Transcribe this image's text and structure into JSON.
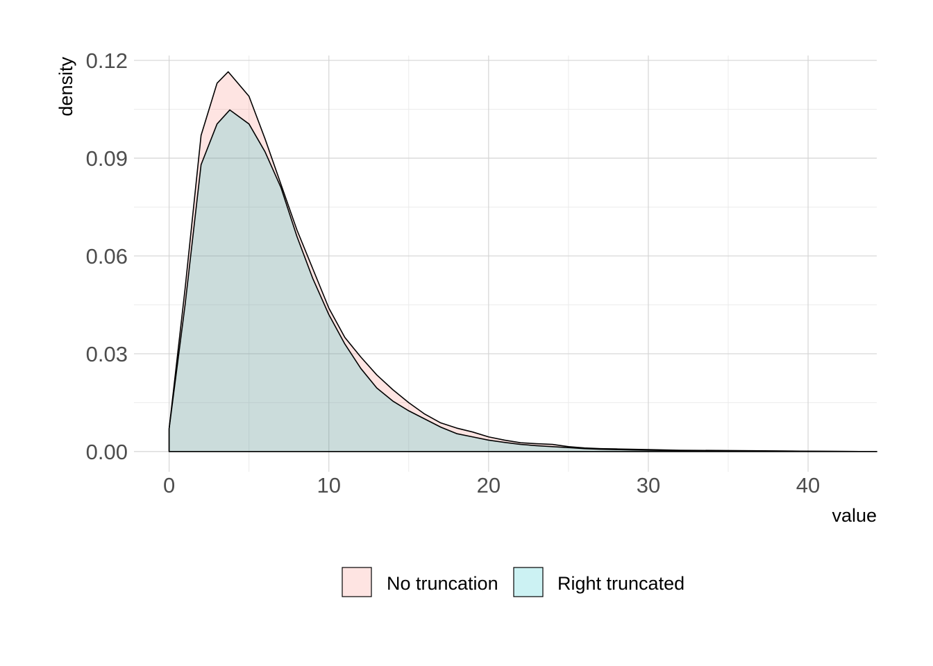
{
  "chart_data": {
    "type": "area",
    "xlabel": "value",
    "ylabel": "density",
    "xlim": [
      -2.2,
      44.3
    ],
    "ylim": [
      -0.0062,
      0.1215
    ],
    "x_ticks": [
      0,
      10,
      20,
      30,
      40
    ],
    "x_tick_labels": [
      "0",
      "10",
      "20",
      "30",
      "40"
    ],
    "y_ticks": [
      0,
      0.03,
      0.06,
      0.09,
      0.12
    ],
    "y_tick_labels": [
      "0.00",
      "0.03",
      "0.06",
      "0.09",
      "0.12"
    ],
    "grid": true,
    "legend_position": "bottom",
    "series": [
      {
        "name": "No truncation",
        "fill": "#F8766D",
        "fill_opacity": 0.2,
        "x": [
          0,
          1,
          2,
          3,
          3.7,
          5,
          6,
          7,
          8,
          9,
          10,
          11,
          12,
          13,
          14,
          15,
          16,
          17,
          18,
          19,
          20,
          21,
          22,
          23,
          24,
          25,
          26,
          27,
          28,
          30,
          32,
          35,
          38,
          40,
          44.3
        ],
        "y": [
          0.007,
          0.05,
          0.097,
          0.113,
          0.1165,
          0.109,
          0.096,
          0.082,
          0.068,
          0.056,
          0.044,
          0.035,
          0.029,
          0.0235,
          0.019,
          0.015,
          0.0115,
          0.0088,
          0.0072,
          0.006,
          0.0045,
          0.0035,
          0.0027,
          0.0024,
          0.0022,
          0.0015,
          0.0011,
          0.0009,
          0.0008,
          0.0006,
          0.0004,
          0.0003,
          0.0002,
          0.0001,
          0.0
        ]
      },
      {
        "name": "Right truncated",
        "fill": "#00BFC4",
        "fill_opacity": 0.2,
        "x": [
          0,
          1,
          2,
          3,
          3.8,
          5,
          6,
          7,
          8,
          9,
          10,
          11,
          12,
          13,
          14,
          15,
          16,
          17,
          18,
          19,
          20,
          21,
          22,
          23,
          24,
          25,
          26,
          27,
          28,
          29,
          30,
          32,
          35,
          38,
          40,
          44.3
        ],
        "y": [
          0.007,
          0.045,
          0.088,
          0.1005,
          0.1048,
          0.1005,
          0.092,
          0.081,
          0.066,
          0.053,
          0.042,
          0.033,
          0.0255,
          0.0195,
          0.0155,
          0.0125,
          0.01,
          0.0075,
          0.0055,
          0.0045,
          0.0035,
          0.0028,
          0.0022,
          0.0018,
          0.0015,
          0.0012,
          0.0009,
          0.0007,
          0.0006,
          0.0005,
          0.0004,
          0.0003,
          0.0002,
          0.0001,
          0.0001,
          0.0
        ]
      }
    ]
  }
}
